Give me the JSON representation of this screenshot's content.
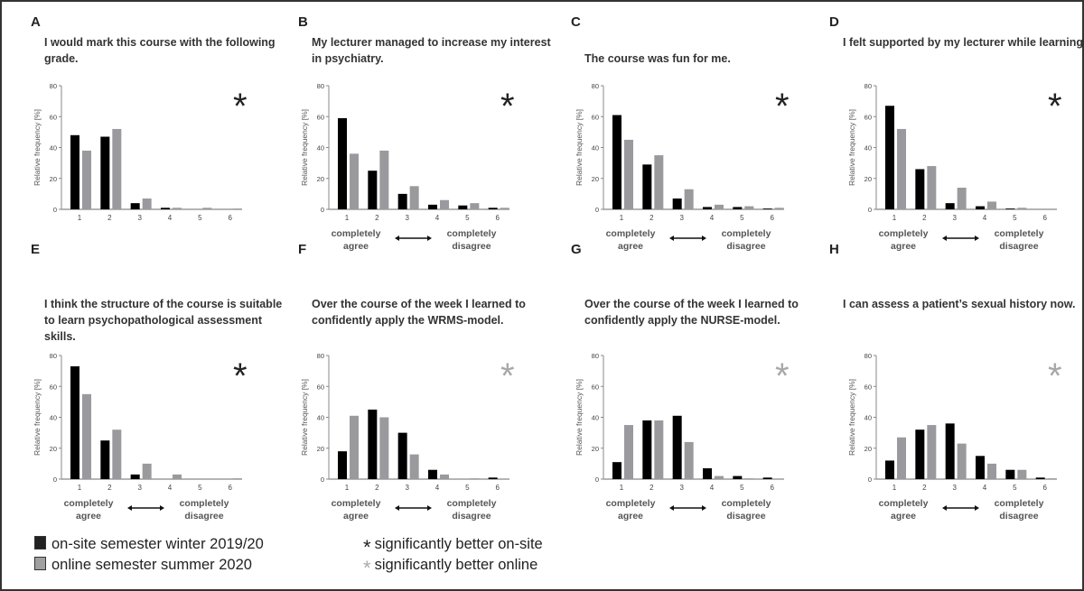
{
  "chart_data": {
    "type": "bar",
    "categories": [
      "1",
      "2",
      "3",
      "4",
      "5",
      "6"
    ],
    "ylabel": "Relative frequency [%]",
    "ylim": [
      0,
      80
    ],
    "yticks": [
      0,
      20,
      40,
      60,
      80
    ],
    "scale_labels": {
      "left": "completely agree",
      "right": "completely disagree"
    },
    "series_names": [
      "on-site semester winter 2019/20",
      "online semester summer 2020"
    ],
    "colors": {
      "onsite": "#000000",
      "online": "#9a9a9e",
      "sig_onsite": "#222222",
      "sig_online": "#a8a8a8"
    },
    "panels": [
      {
        "label": "A",
        "title": "I would mark this course with the following grade.",
        "significance": "onsite",
        "show_scale_labels": false,
        "onsite": [
          48,
          47,
          4,
          1,
          0,
          0
        ],
        "online": [
          38,
          52,
          7,
          1,
          1,
          0.5
        ]
      },
      {
        "label": "B",
        "title": "My lecturer managed to increase my interest in psychiatry.",
        "significance": "onsite",
        "show_scale_labels": true,
        "onsite": [
          59,
          25,
          10,
          3,
          2.5,
          1
        ],
        "online": [
          36,
          38,
          15,
          6,
          4,
          1
        ]
      },
      {
        "label": "C",
        "title": "The course was fun for me.",
        "significance": "onsite",
        "show_scale_labels": true,
        "onsite": [
          61,
          29,
          7,
          1.5,
          1.5,
          0.5
        ],
        "online": [
          45,
          35,
          13,
          3,
          2,
          1
        ]
      },
      {
        "label": "D",
        "title": "I felt supported by my lecturer while learning.",
        "significance": "onsite",
        "show_scale_labels": true,
        "onsite": [
          67,
          26,
          4,
          2,
          0.5,
          0
        ],
        "online": [
          52,
          28,
          14,
          5,
          1,
          0
        ]
      },
      {
        "label": "E",
        "title": "I think the structure of the course is suitable to learn psychopathological assessment skills.",
        "significance": "onsite",
        "show_scale_labels": true,
        "onsite": [
          73,
          25,
          3,
          0,
          0,
          0
        ],
        "online": [
          55,
          32,
          10,
          3,
          0,
          0.5
        ]
      },
      {
        "label": "F",
        "title": "Over the course of the week I learned to confidently apply the WRMS-model.",
        "significance": "online",
        "show_scale_labels": true,
        "onsite": [
          18,
          45,
          30,
          6,
          0,
          1
        ],
        "online": [
          41,
          40,
          16,
          3,
          0.5,
          0
        ]
      },
      {
        "label": "G",
        "title": "Over the course of the week I learned to confidently apply the NURSE-model.",
        "significance": "online",
        "show_scale_labels": true,
        "onsite": [
          11,
          38,
          41,
          7,
          2,
          1
        ],
        "online": [
          35,
          38,
          24,
          2,
          0.5,
          0
        ]
      },
      {
        "label": "H",
        "title": "I can assess a patient’s sexual history now.",
        "significance": "online",
        "show_scale_labels": true,
        "onsite": [
          12,
          32,
          36,
          15,
          6,
          1
        ],
        "online": [
          27,
          35,
          23,
          10,
          6,
          0.5
        ]
      }
    ]
  },
  "legend": {
    "onsite": "on-site semester winter 2019/20",
    "online": "online semester summer 2020",
    "sig_onsite": "significantly better on-site",
    "sig_online": "significantly better online",
    "asterisk": "*"
  }
}
